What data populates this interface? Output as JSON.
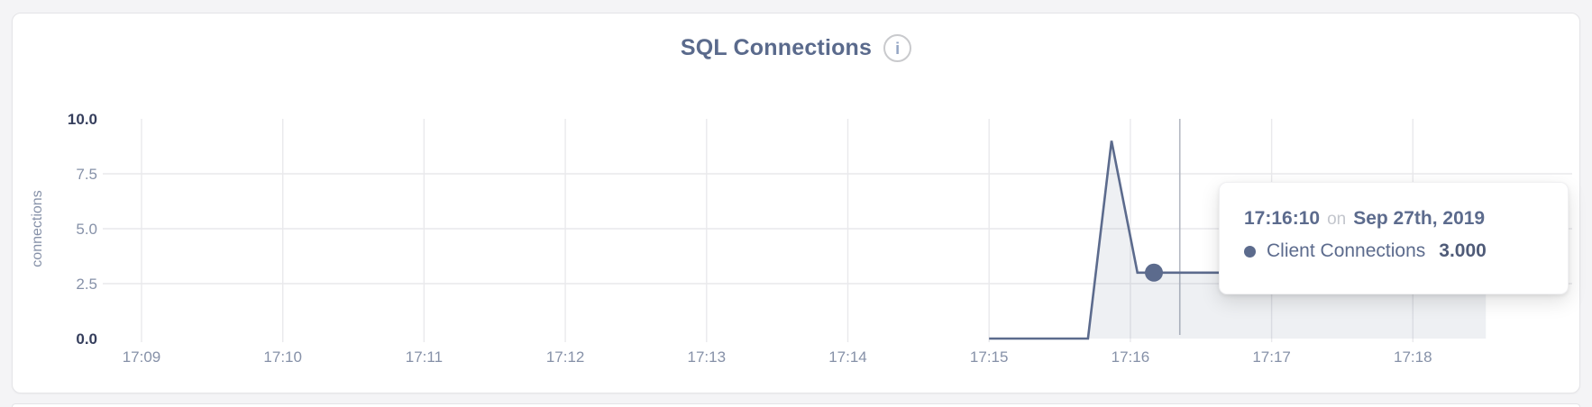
{
  "header": {
    "title": "SQL Connections",
    "info_icon_glyph": "i"
  },
  "chart_data": {
    "type": "area",
    "title": "SQL Connections",
    "xlabel": "",
    "ylabel": "connections",
    "ylim": [
      0,
      10
    ],
    "grid": true,
    "x_domain": [
      "17:09:00",
      "17:19:08"
    ],
    "y_ticks": [
      {
        "value": 0,
        "label": "0.0",
        "emphasis": true,
        "grid": false
      },
      {
        "value": 2.5,
        "label": "2.5",
        "emphasis": false,
        "grid": true
      },
      {
        "value": 5,
        "label": "5.0",
        "emphasis": false,
        "grid": true
      },
      {
        "value": 7.5,
        "label": "7.5",
        "emphasis": false,
        "grid": true
      },
      {
        "value": 10,
        "label": "10.0",
        "emphasis": true,
        "grid": false
      }
    ],
    "x_ticks": [
      {
        "time": "17:09",
        "label": "17:09"
      },
      {
        "time": "17:10",
        "label": "17:10"
      },
      {
        "time": "17:11",
        "label": "17:11"
      },
      {
        "time": "17:12",
        "label": "17:12"
      },
      {
        "time": "17:13",
        "label": "17:13"
      },
      {
        "time": "17:14",
        "label": "17:14"
      },
      {
        "time": "17:15",
        "label": "17:15"
      },
      {
        "time": "17:16",
        "label": "17:16"
      },
      {
        "time": "17:17",
        "label": "17:17"
      },
      {
        "time": "17:18",
        "label": "17:18"
      }
    ],
    "series": [
      {
        "name": "Client Connections",
        "color": "#5c6b8d",
        "fill": "rgba(92,107,141,0.10)",
        "points": [
          {
            "t": "17:15:00",
            "v": 0
          },
          {
            "t": "17:15:42",
            "v": 0
          },
          {
            "t": "17:15:52",
            "v": 9
          },
          {
            "t": "17:16:03",
            "v": 3
          },
          {
            "t": "17:18:31",
            "v": 3
          }
        ]
      }
    ],
    "hover": {
      "point_time": "17:16:10",
      "point_value": 3,
      "crosshair_time": "17:16:21"
    }
  },
  "tooltip": {
    "time": "17:16:10",
    "conjunction": "on",
    "date": "Sep 27th, 2019",
    "series_label": "Client Connections",
    "value": "3.000"
  },
  "colors": {
    "accent_line": "#5c6b8d",
    "title_text": "#5a6a8c",
    "axis_label": "#8691a8",
    "axis_label_strong": "#353e5c",
    "gridline": "#e9e9ec",
    "crosshair": "#b4b8c2",
    "page_bg": "#f4f4f6",
    "card_bg": "#ffffff",
    "card_border": "#e4e4e7"
  }
}
